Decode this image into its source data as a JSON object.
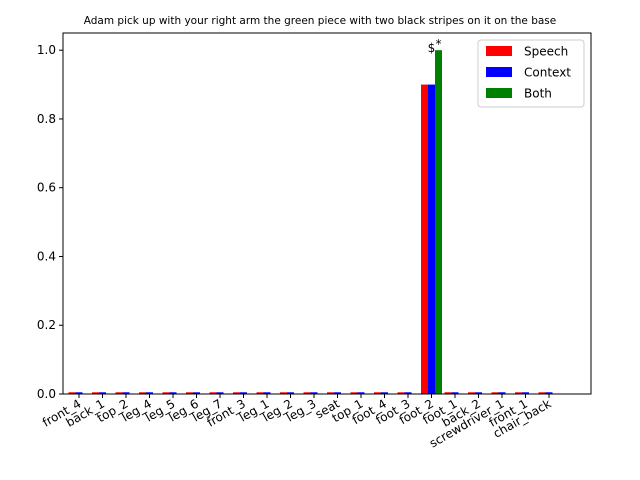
{
  "chart_data": {
    "type": "bar",
    "title": "Adam pick up with your right arm the green piece with two black stripes on it on the base",
    "xlabel": "",
    "ylabel": "",
    "ylim": [
      0,
      1.05
    ],
    "yticks": [
      "0.0",
      "0.2",
      "0.4",
      "0.6",
      "0.8",
      "1.0"
    ],
    "categories": [
      "front_4",
      "back_1",
      "top_2",
      "leg_4",
      "leg_5",
      "leg_6",
      "leg_7",
      "front_3",
      "leg_1",
      "leg_2",
      "leg_3",
      "seat",
      "top_1",
      "foot_4",
      "foot_3",
      "foot_2",
      "foot_1",
      "back_2",
      "screwdriver_1",
      "front_1",
      "chair_back"
    ],
    "series": [
      {
        "name": "Speech",
        "color": "#ff0000",
        "values": [
          0.005,
          0.005,
          0.005,
          0.005,
          0.005,
          0.005,
          0.005,
          0.005,
          0.005,
          0.005,
          0.005,
          0.005,
          0.005,
          0.005,
          0.005,
          0.9,
          0.005,
          0.005,
          0.005,
          0.005,
          0.005
        ]
      },
      {
        "name": "Context",
        "color": "#0000ff",
        "values": [
          0.005,
          0.005,
          0.005,
          0.005,
          0.005,
          0.005,
          0.005,
          0.005,
          0.005,
          0.005,
          0.005,
          0.005,
          0.005,
          0.005,
          0.005,
          0.9,
          0.005,
          0.005,
          0.005,
          0.005,
          0.005
        ]
      },
      {
        "name": "Both",
        "color": "#008000",
        "values": [
          0,
          0,
          0,
          0,
          0,
          0,
          0,
          0,
          0,
          0,
          0,
          0,
          0,
          0,
          0,
          1.0,
          0,
          0,
          0,
          0,
          0
        ]
      }
    ],
    "annotations": [
      {
        "text": "*",
        "category": "foot_2"
      },
      {
        "text": "$",
        "category": "foot_2"
      }
    ],
    "legend_position": "top-right",
    "grid": false
  }
}
